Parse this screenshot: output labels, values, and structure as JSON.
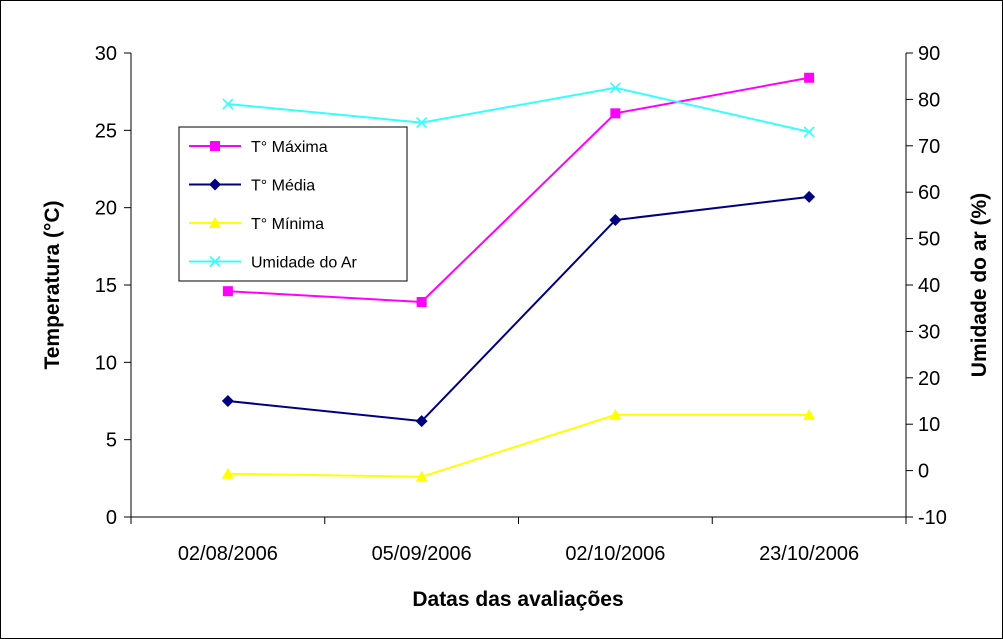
{
  "chart_data": {
    "type": "line",
    "categories": [
      "02/08/2006",
      "05/09/2006",
      "02/10/2006",
      "23/10/2006"
    ],
    "xlabel": "Datas das avaliações",
    "ylabel": "Temperatura (°C)",
    "ylabel_right": "Umidade do ar (%)",
    "ylim": [
      0,
      30
    ],
    "yticks": [
      0,
      5,
      10,
      15,
      20,
      25,
      30
    ],
    "ylim_right": [
      -10,
      90
    ],
    "yticks_right": [
      -10,
      0,
      10,
      20,
      30,
      40,
      50,
      60,
      70,
      80,
      90
    ],
    "grid": false,
    "legend_position": "left",
    "series": [
      {
        "name": "T° Máxima",
        "axis": "left",
        "color": "#ff00ff",
        "marker": "square",
        "values": [
          14.6,
          13.9,
          26.1,
          28.4
        ]
      },
      {
        "name": "T° Média",
        "axis": "left",
        "color": "#000080",
        "marker": "diamond",
        "values": [
          7.5,
          6.2,
          19.2,
          20.7
        ]
      },
      {
        "name": "T° Mínima",
        "axis": "left",
        "color": "#ffff00",
        "marker": "triangle",
        "values": [
          2.8,
          2.6,
          6.6,
          6.6
        ]
      },
      {
        "name": "Umidade do Ar",
        "axis": "right",
        "color": "#33ffff",
        "marker": "x",
        "values": [
          79,
          75,
          82.5,
          73
        ]
      }
    ]
  }
}
